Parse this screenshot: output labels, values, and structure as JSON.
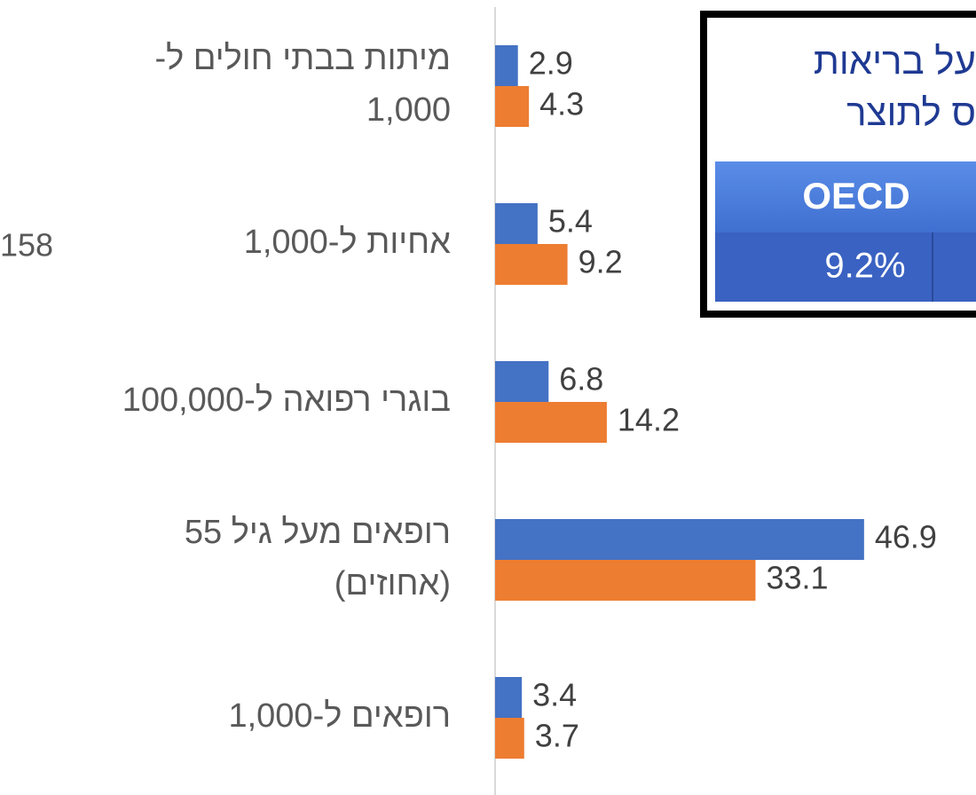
{
  "chart_data": {
    "type": "hbar",
    "categories": [
      [
        "מיתות בבתי חולים ל-",
        "1,000"
      ],
      [
        "אחיות ל-1,000"
      ],
      [
        "בוגרי רפואה ל-100,000"
      ],
      [
        "רופאים מעל גיל 55",
        "(אחוזים)"
      ],
      [
        "רופאים ל-1,000"
      ]
    ],
    "series": [
      {
        "color": "#4472c4",
        "values": [
          2.9,
          5.4,
          6.8,
          46.9,
          3.4
        ]
      },
      {
        "color": "#ed7d31",
        "values": [
          4.3,
          9.2,
          14.2,
          33.1,
          3.7
        ]
      }
    ],
    "xlim": [
      0,
      60
    ]
  },
  "inset": {
    "title_lines": [
      "על בריאות",
      "ס לתוצר"
    ],
    "header": "OECD",
    "value": "9.2%"
  },
  "fragment": "158"
}
